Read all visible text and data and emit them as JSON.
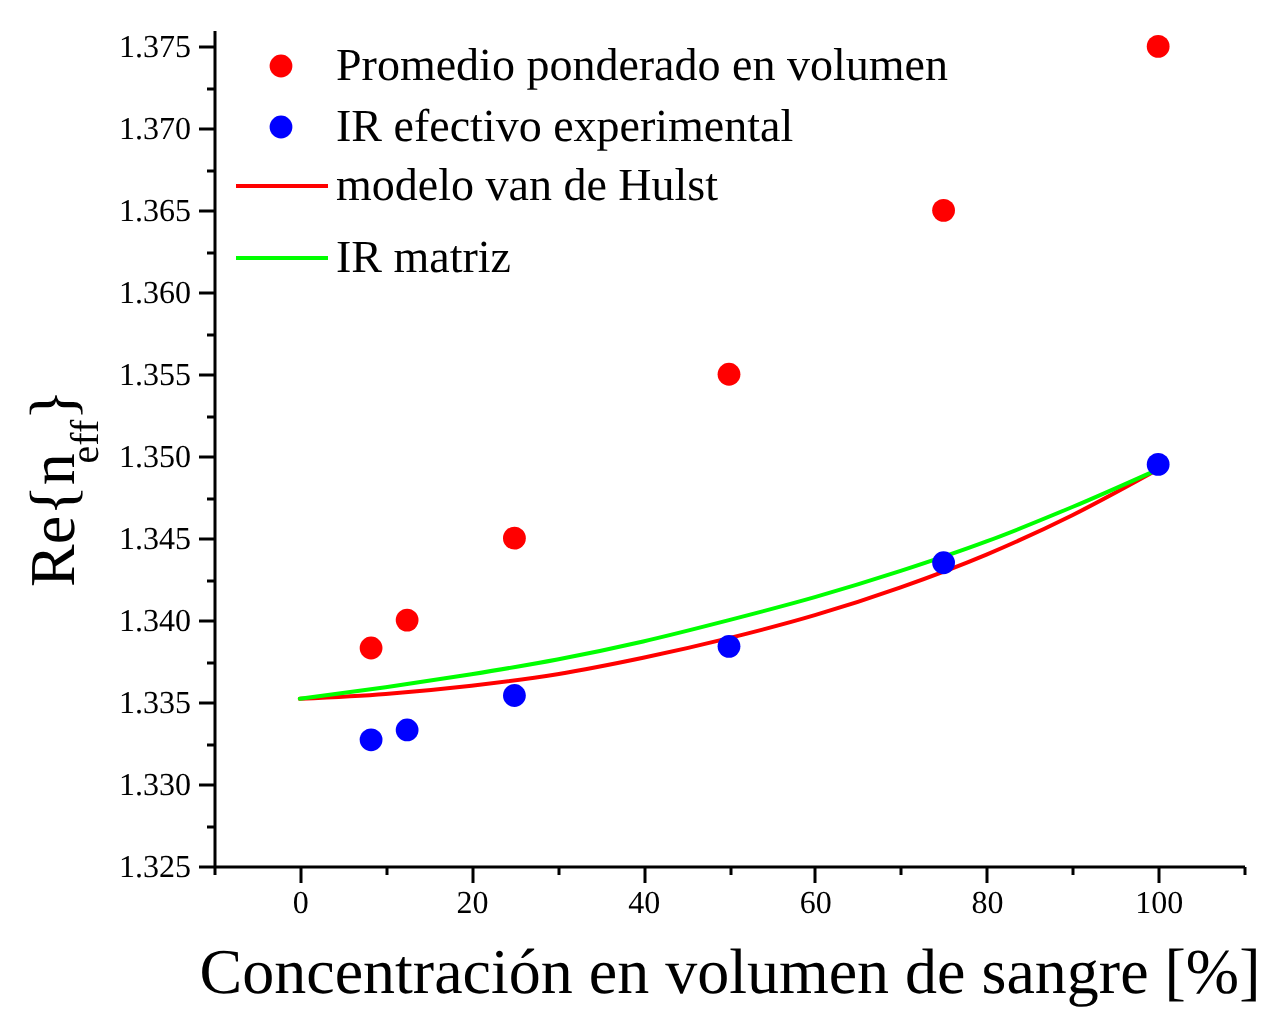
{
  "chart_data": {
    "type": "scatter",
    "xlabel": "Concentración en volumen de sangre [%]",
    "ylabel": "Re{n$_{eff}$}",
    "xlim": [
      -10,
      110
    ],
    "xticks": [
      {
        "value": -10,
        "label": null
      },
      0,
      {
        "value": 10,
        "label": null
      },
      20,
      {
        "value": 30,
        "label": null
      },
      40,
      {
        "value": 50,
        "label": null
      },
      60,
      {
        "value": 70,
        "label": null
      },
      80,
      {
        "value": 90,
        "label": null
      },
      100,
      {
        "value": 110,
        "label": null
      }
    ],
    "ylim": [
      1.325,
      1.376
    ],
    "yticks": [
      1.325,
      {
        "value": 1.3275,
        "label": null
      },
      {
        "value": 1.33,
        "label": "1.330"
      },
      {
        "value": 1.3325,
        "label": null
      },
      1.335,
      {
        "value": 1.3375,
        "label": null
      },
      {
        "value": 1.34,
        "label": "1.340"
      },
      {
        "value": 1.3425,
        "label": null
      },
      1.345,
      {
        "value": 1.3475,
        "label": null
      },
      {
        "value": 1.35,
        "label": "1.350"
      },
      {
        "value": 1.3525,
        "label": null
      },
      1.355,
      {
        "value": 1.3575,
        "label": null
      },
      {
        "value": 1.36,
        "label": "1.360"
      },
      {
        "value": 1.3625,
        "label": null
      },
      1.365,
      {
        "value": 1.3675,
        "label": null
      },
      {
        "value": 1.37,
        "label": "1.370"
      },
      {
        "value": 1.3725,
        "label": null
      },
      1.375
    ],
    "grid": false,
    "legend": "top left",
    "series": [
      {
        "name": "Promedio ponderado en volumen",
        "marker": "circle",
        "color": "#ff0000",
        "x": [
          8.3,
          12.5,
          25,
          50,
          75,
          100
        ],
        "values": [
          1.3383,
          1.34,
          1.345,
          1.355,
          1.365,
          1.375
        ]
      },
      {
        "name": "IR efectivo experimental",
        "marker": "circle",
        "color": "#0000ff",
        "x": [
          8.3,
          12.5,
          25,
          50,
          75,
          100
        ],
        "values": [
          1.3327,
          1.3333,
          1.3354,
          1.3384,
          1.3435,
          1.3495
        ]
      },
      {
        "name": "modelo van de Hulst",
        "type": "line",
        "line_style": "solid",
        "color": "#ff0000",
        "x": [
          0,
          10,
          20,
          30,
          40,
          50,
          60,
          70,
          80,
          90,
          100
        ],
        "values": [
          1.3352,
          1.3355,
          1.336,
          1.3367,
          1.3377,
          1.3389,
          1.3403,
          1.342,
          1.344,
          1.3464,
          1.3492
        ]
      },
      {
        "name": "IR matriz",
        "type": "line",
        "line_style": "solid",
        "color": "#00ff00",
        "x": [
          0,
          10,
          20,
          30,
          40,
          50,
          60,
          70,
          80,
          90,
          100
        ],
        "values": [
          1.3352,
          1.3359,
          1.3367,
          1.3376,
          1.3387,
          1.34,
          1.3414,
          1.343,
          1.3448,
          1.3469,
          1.3492
        ]
      }
    ]
  }
}
